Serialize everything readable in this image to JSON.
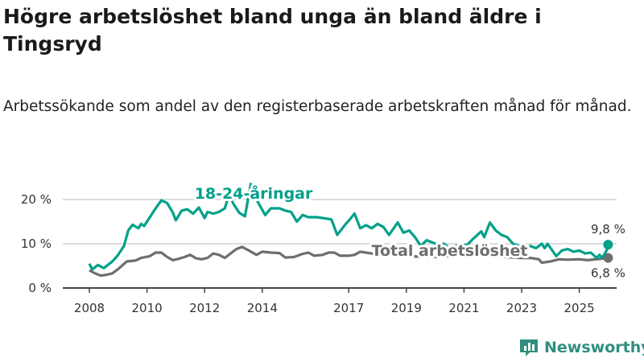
{
  "title": "Högre arbetslöshet bland unga än bland äldre i Tingsryd",
  "subtitle": "Arbetssökande som andel av den registerbaserade arbetskraften månad för månad.",
  "brand": "Newsworthy",
  "chart_data": {
    "type": "line",
    "title": "Högre arbetslöshet bland unga än bland äldre i Tingsryd",
    "xlabel": "",
    "ylabel": "",
    "ylim": [
      0,
      20
    ],
    "xlim": [
      2008,
      2026
    ],
    "yticks": [
      {
        "v": 0,
        "label": "0 %"
      },
      {
        "v": 10,
        "label": "10 %"
      },
      {
        "v": 20,
        "label": "20 %"
      }
    ],
    "xticks": [
      {
        "v": 2008,
        "label": "2008"
      },
      {
        "v": 2010,
        "label": "2010"
      },
      {
        "v": 2012,
        "label": "2012"
      },
      {
        "v": 2014,
        "label": "2014"
      },
      {
        "v": 2017,
        "label": "2017"
      },
      {
        "v": 2019,
        "label": "2019"
      },
      {
        "v": 2021,
        "label": "2021"
      },
      {
        "v": 2023,
        "label": "2023"
      },
      {
        "v": 2025,
        "label": "2025"
      }
    ],
    "series": [
      {
        "name": "18-24-åringar",
        "color": "#00a08a",
        "end_label": "9,8 %",
        "label_at": [
          2013.7,
          20.2
        ],
        "points": [
          [
            2008,
            5.5
          ],
          [
            2008.1,
            4.2
          ],
          [
            2008.3,
            5.2
          ],
          [
            2008.5,
            4.5
          ],
          [
            2008.8,
            6
          ],
          [
            2009,
            7.5
          ],
          [
            2009.2,
            9.5
          ],
          [
            2009.35,
            13
          ],
          [
            2009.5,
            14.3
          ],
          [
            2009.7,
            13.5
          ],
          [
            2009.8,
            14.5
          ],
          [
            2009.9,
            14
          ],
          [
            2010.1,
            16
          ],
          [
            2010.3,
            18
          ],
          [
            2010.5,
            19.8
          ],
          [
            2010.7,
            19.2
          ],
          [
            2010.9,
            17
          ],
          [
            2011,
            15.3
          ],
          [
            2011.2,
            17.5
          ],
          [
            2011.4,
            17.8
          ],
          [
            2011.6,
            16.8
          ],
          [
            2011.8,
            18.2
          ],
          [
            2012,
            15.8
          ],
          [
            2012.1,
            17.2
          ],
          [
            2012.3,
            16.8
          ],
          [
            2012.5,
            17.2
          ],
          [
            2012.7,
            18
          ],
          [
            2012.85,
            21.2
          ],
          [
            2013.0,
            19
          ],
          [
            2013.2,
            17
          ],
          [
            2013.4,
            16.2
          ],
          [
            2013.6,
            23.5
          ],
          [
            2013.8,
            20
          ],
          [
            2014.1,
            16.5
          ],
          [
            2014.3,
            18
          ],
          [
            2014.6,
            18
          ],
          [
            2014.8,
            17.5
          ],
          [
            2015,
            17.2
          ],
          [
            2015.2,
            15
          ],
          [
            2015.4,
            16.5
          ],
          [
            2015.6,
            16
          ],
          [
            2015.9,
            16
          ],
          [
            2016.2,
            15.7
          ],
          [
            2016.4,
            15.5
          ],
          [
            2016.6,
            12
          ],
          [
            2016.9,
            14.5
          ],
          [
            2017.0,
            15.2
          ],
          [
            2017.2,
            16.8
          ],
          [
            2017.4,
            13.5
          ],
          [
            2017.6,
            14.2
          ],
          [
            2017.8,
            13.5
          ],
          [
            2018.0,
            14.5
          ],
          [
            2018.2,
            13.8
          ],
          [
            2018.4,
            12
          ],
          [
            2018.7,
            14.8
          ],
          [
            2018.9,
            12.5
          ],
          [
            2019.1,
            13
          ],
          [
            2019.3,
            11.5
          ],
          [
            2019.5,
            9.5
          ],
          [
            2019.7,
            10.8
          ],
          [
            2019.9,
            10.3
          ],
          [
            2020.1,
            9.8
          ],
          [
            2020.3,
            10
          ],
          [
            2020.5,
            9
          ],
          [
            2020.7,
            9.5
          ],
          [
            2020.9,
            9.8
          ],
          [
            2021.1,
            9.7
          ],
          [
            2021.3,
            11
          ],
          [
            2021.6,
            12.8
          ],
          [
            2021.7,
            11.5
          ],
          [
            2021.9,
            14.8
          ],
          [
            2022.1,
            13
          ],
          [
            2022.3,
            12
          ],
          [
            2022.5,
            11.5
          ],
          [
            2022.7,
            10
          ],
          [
            2022.9,
            9.5
          ],
          [
            2023.1,
            9
          ],
          [
            2023.3,
            9.5
          ],
          [
            2023.5,
            9
          ],
          [
            2023.7,
            10
          ],
          [
            2023.8,
            9
          ],
          [
            2023.9,
            10
          ],
          [
            2024.2,
            7.2
          ],
          [
            2024.4,
            8.5
          ],
          [
            2024.6,
            8.8
          ],
          [
            2024.8,
            8.2
          ],
          [
            2025.0,
            8.5
          ],
          [
            2025.2,
            7.8
          ],
          [
            2025.4,
            8
          ],
          [
            2025.6,
            6.8
          ],
          [
            2025.7,
            7.5
          ],
          [
            2025.8,
            6.8
          ],
          [
            2025.95,
            8.5
          ],
          [
            2026.0,
            9.8
          ]
        ]
      },
      {
        "name": "Total arbetslöshet",
        "color": "#6e6e6e",
        "end_label": "6,8 %",
        "label_at": [
          2020.5,
          7.3
        ],
        "points": [
          [
            2008,
            4
          ],
          [
            2008.2,
            3.3
          ],
          [
            2008.4,
            2.8
          ],
          [
            2008.6,
            3
          ],
          [
            2008.8,
            3.3
          ],
          [
            2009,
            4.3
          ],
          [
            2009.3,
            6
          ],
          [
            2009.6,
            6.2
          ],
          [
            2009.8,
            6.8
          ],
          [
            2010.1,
            7.2
          ],
          [
            2010.3,
            8
          ],
          [
            2010.5,
            8
          ],
          [
            2010.7,
            7
          ],
          [
            2010.9,
            6.3
          ],
          [
            2011.1,
            6.6
          ],
          [
            2011.3,
            7
          ],
          [
            2011.5,
            7.5
          ],
          [
            2011.7,
            6.7
          ],
          [
            2011.9,
            6.5
          ],
          [
            2012.1,
            6.8
          ],
          [
            2012.3,
            7.8
          ],
          [
            2012.5,
            7.5
          ],
          [
            2012.7,
            6.8
          ],
          [
            2012.9,
            7.8
          ],
          [
            2013.1,
            8.8
          ],
          [
            2013.3,
            9.3
          ],
          [
            2013.5,
            8.6
          ],
          [
            2013.8,
            7.5
          ],
          [
            2014,
            8.2
          ],
          [
            2014.3,
            8
          ],
          [
            2014.6,
            7.9
          ],
          [
            2014.8,
            6.9
          ],
          [
            2015.1,
            7
          ],
          [
            2015.4,
            7.7
          ],
          [
            2015.6,
            8
          ],
          [
            2015.8,
            7.3
          ],
          [
            2016.1,
            7.5
          ],
          [
            2016.3,
            8
          ],
          [
            2016.5,
            8
          ],
          [
            2016.7,
            7.3
          ],
          [
            2017.0,
            7.3
          ],
          [
            2017.2,
            7.5
          ],
          [
            2017.4,
            8.2
          ],
          [
            2018,
            7.6
          ],
          [
            2019,
            7.2
          ],
          [
            2020,
            7
          ],
          [
            2021,
            7.4
          ],
          [
            2022,
            7.2
          ],
          [
            2022.9,
            6.8
          ],
          [
            2023.3,
            6.8
          ],
          [
            2023.6,
            6.5
          ],
          [
            2023.7,
            5.7
          ],
          [
            2024.0,
            6
          ],
          [
            2024.3,
            6.5
          ],
          [
            2024.6,
            6.4
          ],
          [
            2025.0,
            6.5
          ],
          [
            2025.3,
            6.3
          ],
          [
            2026.0,
            6.8
          ]
        ]
      }
    ]
  }
}
